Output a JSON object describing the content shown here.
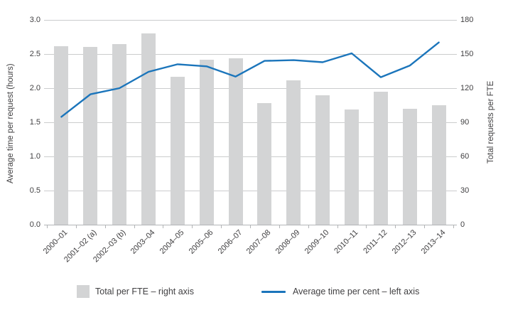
{
  "chart_data": {
    "type": "bar",
    "subtype": "bar+line dual axis",
    "categories": [
      "2000–01",
      "2001–02 (a)",
      "2002–03 (b)",
      "2003–04",
      "2004–05",
      "2005–06",
      "2006–07",
      "2007–08",
      "2008–09",
      "2009–10",
      "2010–11",
      "2011–12",
      "2012–13",
      "2013–14"
    ],
    "series": [
      {
        "name": "Total per FTE – right axis",
        "type": "bar",
        "axis": "right",
        "color": "#d3d4d5",
        "values": [
          157,
          156,
          159,
          168,
          130,
          145,
          146,
          107,
          127,
          114,
          101,
          117,
          102,
          105
        ]
      },
      {
        "name": "Average time per cent – left axis",
        "type": "line",
        "axis": "left",
        "color": "#1b75bb",
        "values": [
          1.58,
          1.91,
          2.0,
          2.24,
          2.35,
          2.32,
          2.17,
          2.4,
          2.41,
          2.38,
          2.51,
          2.16,
          2.33,
          2.67
        ]
      }
    ],
    "left_axis": {
      "label": "Average time per request (hours)",
      "min": 0,
      "max": 3,
      "step": 0.5,
      "ticks": [
        "0.0",
        "0.5",
        "1.0",
        "1.5",
        "2.0",
        "2.5",
        "3.0"
      ]
    },
    "right_axis": {
      "label": "Total requests per FTE",
      "min": 0,
      "max": 180,
      "step": 30,
      "ticks": [
        "0",
        "30",
        "60",
        "90",
        "120",
        "150",
        "180"
      ]
    },
    "title": "",
    "grid": true,
    "gridline_color": "#cbcccd",
    "axis_line_color": "#b3b5b7",
    "text_color": "#414042",
    "legend_position": "bottom"
  }
}
